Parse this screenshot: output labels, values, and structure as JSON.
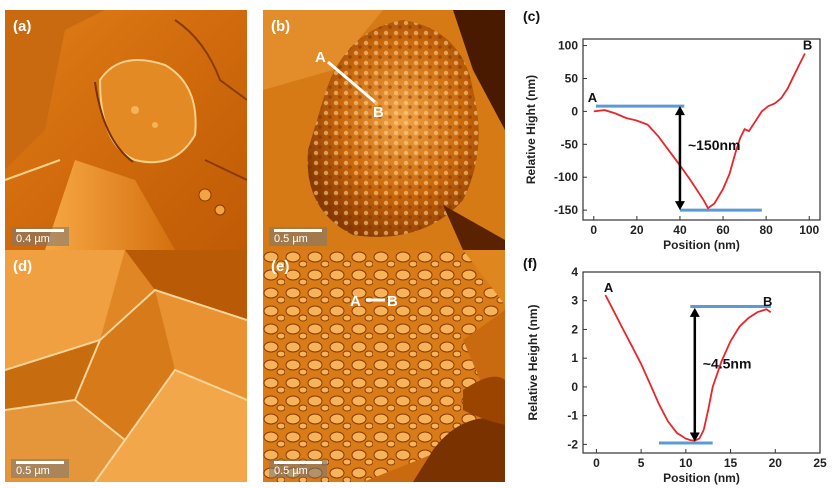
{
  "panels": {
    "a": {
      "label": "(a)",
      "scale": "0.4 µm"
    },
    "b": {
      "label": "(b)",
      "scale": "0.5 µm",
      "point_a": "A",
      "point_b": "B"
    },
    "d": {
      "label": "(d)",
      "scale": "0.5 µm"
    },
    "e": {
      "label": "(e)",
      "scale": "0.5 µm",
      "point_a": "A",
      "point_b": "B"
    }
  },
  "colors": {
    "trace": "#e8262a",
    "guide": "#5b9bd5",
    "arrow": "#000000",
    "afm_dark": "#6b2a00",
    "afm_mid": "#d77810",
    "afm_light": "#ffd28a"
  },
  "chart_data": [
    {
      "panel": "(c)",
      "type": "line",
      "xlabel": "Position (nm)",
      "ylabel": "Relative Hight (nm)",
      "xlim": [
        -5,
        105
      ],
      "ylim": [
        -165,
        110
      ],
      "xticks": [
        0,
        20,
        40,
        60,
        80,
        100
      ],
      "yticks": [
        100,
        50,
        0,
        -50,
        -100,
        -150
      ],
      "series": [
        {
          "x": [
            0,
            5,
            10,
            15,
            20,
            25,
            30,
            35,
            40,
            45,
            48,
            51,
            53,
            56,
            60,
            63,
            66,
            68,
            70,
            72,
            75,
            78,
            81,
            84,
            87,
            90,
            93,
            96,
            98
          ],
          "y": [
            0,
            2,
            -3,
            -10,
            -14,
            -20,
            -38,
            -60,
            -82,
            -105,
            -120,
            -135,
            -147,
            -140,
            -118,
            -95,
            -60,
            -40,
            -27,
            -30,
            -15,
            0,
            8,
            12,
            20,
            35,
            55,
            75,
            88
          ]
        }
      ],
      "guides": [
        {
          "y": 8,
          "x": [
            1,
            42
          ]
        },
        {
          "y": -150,
          "x": [
            40,
            78
          ]
        }
      ],
      "arrow": {
        "x": 40,
        "y": [
          8,
          -150
        ]
      },
      "annotation": "~150nm",
      "point_labels": [
        {
          "text": "A",
          "x": 0,
          "y": 8
        },
        {
          "text": "B",
          "x": 98,
          "y": 100
        }
      ]
    },
    {
      "panel": "(f)",
      "type": "line",
      "xlabel": "Position (nm)",
      "ylabel": "Relative Height (nm)",
      "xlim": [
        -1.5,
        25
      ],
      "ylim": [
        -2.3,
        4
      ],
      "xticks": [
        0,
        5,
        10,
        15,
        20,
        25
      ],
      "yticks": [
        4,
        3,
        2,
        1,
        0,
        -1,
        -2
      ],
      "series": [
        {
          "x": [
            1,
            2,
            3,
            4,
            5,
            6,
            7,
            8,
            9,
            10,
            10.5,
            11,
            11.5,
            12,
            12.5,
            13,
            14,
            15,
            16,
            17,
            18,
            19,
            19.5
          ],
          "y": [
            3.2,
            2.6,
            2.0,
            1.4,
            0.8,
            0.1,
            -0.6,
            -1.2,
            -1.6,
            -1.8,
            -1.85,
            -1.87,
            -1.8,
            -1.5,
            -0.8,
            0.0,
            0.9,
            1.6,
            2.1,
            2.4,
            2.6,
            2.7,
            2.6
          ]
        }
      ],
      "guides": [
        {
          "y": 2.8,
          "x": [
            10.5,
            19.5
          ]
        },
        {
          "y": -1.95,
          "x": [
            7,
            13
          ]
        }
      ],
      "arrow": {
        "x": 11,
        "y": [
          2.75,
          -1.9
        ]
      },
      "annotation": "~4.5nm",
      "point_labels": [
        {
          "text": "A",
          "x": 1.5,
          "y": 3.3
        },
        {
          "text": "B",
          "x": 19.3,
          "y": 2.95
        }
      ]
    }
  ]
}
